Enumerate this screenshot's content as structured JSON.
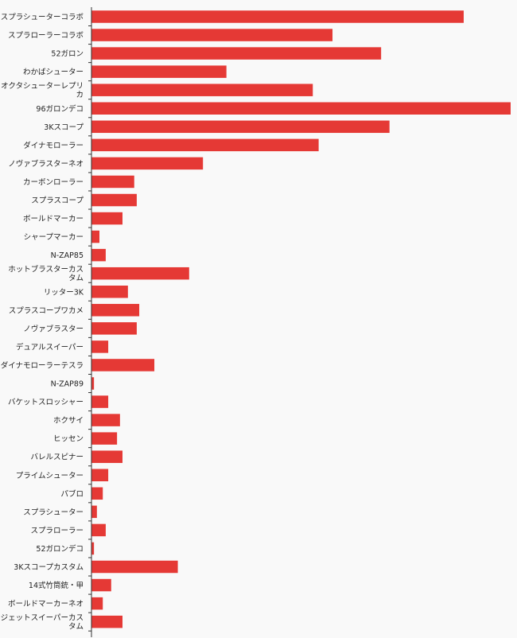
{
  "chart_data": {
    "type": "bar",
    "orientation": "horizontal",
    "title": "",
    "xlabel": "",
    "ylabel": "",
    "bar_color": "#e53935",
    "axis_color": "#333333",
    "background_color": "#f9f9f9",
    "grid": false,
    "xlim": [
      0,
      100
    ],
    "categories": [
      "スプラシューターコラボ",
      "スプラローラーコラボ",
      "52ガロン",
      "わかばシューター",
      "オクタシューターレプリカ",
      "96ガロンデコ",
      "3Kスコープ",
      "ダイナモローラー",
      "ノヴァブラスターネオ",
      "カーボンローラー",
      "スプラスコープ",
      "ボールドマーカー",
      "シャープマーカー",
      "N-ZAP85",
      "ホットブラスターカスタム",
      "リッター3K",
      "スプラスコープワカメ",
      "ノヴァブラスター",
      "デュアルスイーパー",
      "ダイナモローラーテスラ",
      "N-ZAP89",
      "バケットスロッシャー",
      "ホクサイ",
      "ヒッセン",
      "バレルスピナー",
      "プライムシューター",
      "パブロ",
      "スプラシューター",
      "スプラローラー",
      "52ガロンデコ",
      "3Kスコープカスタム",
      "14式竹筒銃・甲",
      "ボールドマーカーネオ",
      "ジェットスイーパーカスタム"
    ],
    "values": [
      88.8,
      57.5,
      69.1,
      32.2,
      52.8,
      100,
      71.1,
      54.2,
      26.6,
      10.2,
      10.8,
      7.4,
      1.9,
      3.4,
      23.3,
      8.7,
      11.4,
      10.8,
      4.0,
      15.0,
      0.6,
      4.0,
      6.8,
      6.1,
      7.4,
      4.0,
      2.7,
      1.3,
      3.4,
      0.6,
      20.6,
      4.7,
      2.7,
      7.4
    ]
  }
}
